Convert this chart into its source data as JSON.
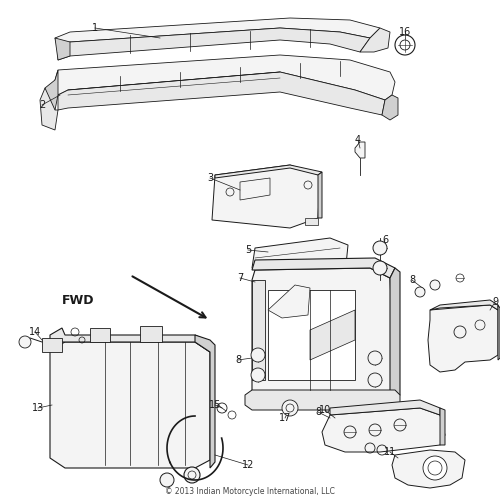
{
  "copyright": "© 2013 Indian Motorcycle International, LLC",
  "background_color": "#ffffff",
  "line_color": "#1a1a1a",
  "fig_width": 5.0,
  "fig_height": 5.0,
  "dpi": 100,
  "gray_fill": "#e8e8e8",
  "light_fill": "#f4f4f4",
  "mid_fill": "#d0d0d0",
  "dark_fill": "#b0b0b0"
}
